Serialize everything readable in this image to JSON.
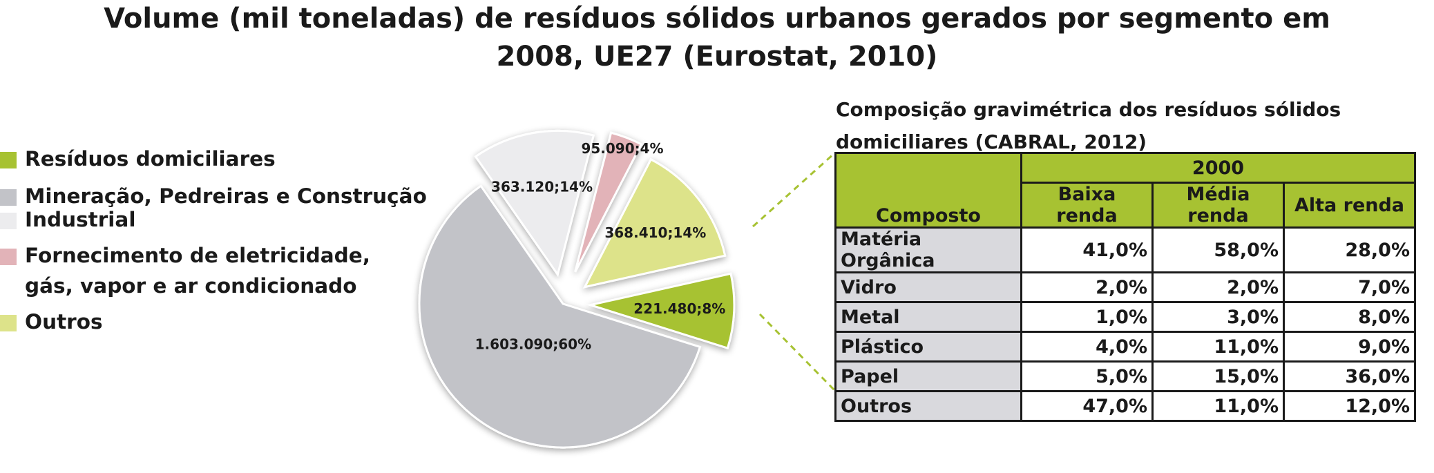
{
  "title_line1": "Volume (mil toneladas) de resíduos sólidos urbanos gerados por segmento em",
  "title_line2": "2008, UE27 (Eurostat, 2010)",
  "chart_data": {
    "type": "pie",
    "title": "Volume (mil toneladas) de resíduos sólidos urbanos gerados por segmento em 2008, UE27 (Eurostat, 2010)",
    "legend_position": "left",
    "slices": [
      {
        "name": "Resíduos domiciliares",
        "value": 221480,
        "percent": 8,
        "label": "221.480;8%",
        "color": "#a7c232",
        "exploded": true
      },
      {
        "name": "Mineração, Pedreiras e Construção",
        "value": 1603090,
        "percent": 60,
        "label": "1.603.090;60%",
        "color": "#c2c3c8",
        "exploded": false
      },
      {
        "name": "Industrial",
        "value": 363120,
        "percent": 14,
        "label": "363.120;14%",
        "color": "#ececee",
        "exploded": true
      },
      {
        "name": "Fornecimento de eletricidade, gás, vapor e ar condicionado",
        "value": 95090,
        "percent": 4,
        "label": "95.090;4%",
        "color": "#e2b3b8",
        "exploded": true
      },
      {
        "name": "Outros",
        "value": 368410,
        "percent": 14,
        "label": "368.410;14%",
        "color": "#dde38a",
        "exploded": true
      }
    ]
  },
  "legend": [
    {
      "label": "Resíduos domiciliares",
      "color": "#a7c232"
    },
    {
      "label": "Mineração, Pedreiras e Construção",
      "color": "#c2c3c8"
    },
    {
      "label": "Industrial",
      "color": "#ececee"
    },
    {
      "label": "Fornecimento de eletricidade, gás, vapor e ar condicionado",
      "color": "#e2b3b8"
    },
    {
      "label": "Outros",
      "color": "#dde38a"
    }
  ],
  "table": {
    "title": "Composição gravimétrica dos resíduos sólidos domiciliares (CABRAL, 2012)",
    "year": "2000",
    "header_first": "Composto",
    "columns": [
      "Baixa renda",
      "Média renda",
      "Alta renda"
    ],
    "rows": [
      {
        "name": "Matéria Orgânica",
        "values": [
          "41,0%",
          "58,0%",
          "28,0%"
        ]
      },
      {
        "name": "Vidro",
        "values": [
          "2,0%",
          "2,0%",
          "7,0%"
        ]
      },
      {
        "name": "Metal",
        "values": [
          "1,0%",
          "3,0%",
          "8,0%"
        ]
      },
      {
        "name": "Plástico",
        "values": [
          "4,0%",
          "11,0%",
          "9,0%"
        ]
      },
      {
        "name": "Papel",
        "values": [
          "5,0%",
          "15,0%",
          "36,0%"
        ]
      },
      {
        "name": "Outros",
        "values": [
          "47,0%",
          "11,0%",
          "12,0%"
        ]
      }
    ]
  }
}
